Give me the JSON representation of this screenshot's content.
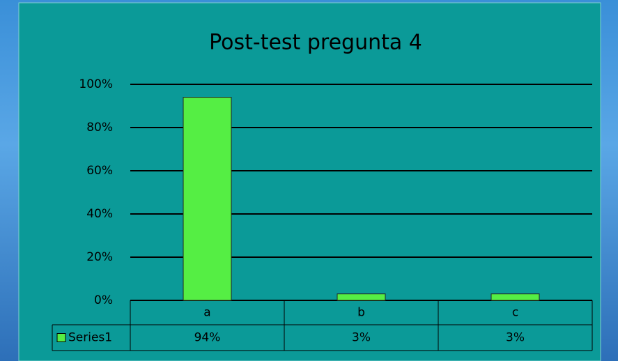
{
  "chart_data": {
    "type": "bar",
    "title": "Post-test pregunta 4",
    "categories": [
      "a",
      "b",
      "c"
    ],
    "series": [
      {
        "name": "Series1",
        "color": "#55ee44",
        "values": [
          94,
          3,
          3
        ],
        "value_labels": [
          "94%",
          "3%",
          "3%"
        ]
      }
    ],
    "ylim": [
      0,
      100
    ],
    "yticks": [
      {
        "value": 0,
        "label": "0%"
      },
      {
        "value": 20,
        "label": "20%"
      },
      {
        "value": 40,
        "label": "40%"
      },
      {
        "value": 60,
        "label": "60%"
      },
      {
        "value": 80,
        "label": "80%"
      },
      {
        "value": 100,
        "label": "100%"
      }
    ],
    "grid": true
  }
}
